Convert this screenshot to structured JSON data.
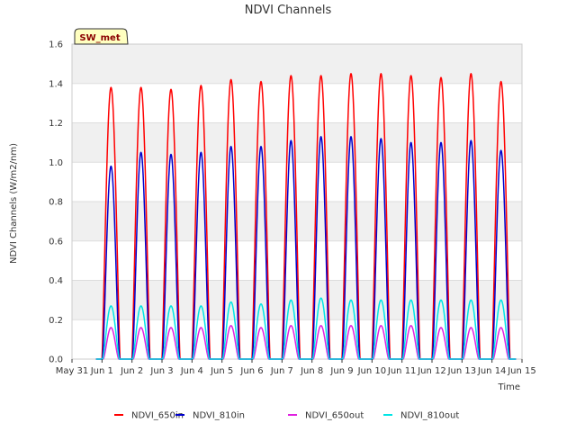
{
  "chart_data": {
    "type": "line",
    "title": "NDVI Channels",
    "xlabel": "Time",
    "ylabel": "NDVI Channels (W/m2/nm)",
    "badge": "SW_met",
    "ylim": [
      0.0,
      1.6
    ],
    "yticks": [
      "0.0",
      "0.2",
      "0.4",
      "0.6",
      "0.8",
      "1.0",
      "1.2",
      "1.4",
      "1.6"
    ],
    "xlim_days": [
      0,
      15
    ],
    "xticks": [
      "May 31",
      "Jun 1",
      "Jun 2",
      "Jun 3",
      "Jun 4",
      "Jun 5",
      "Jun 6",
      "Jun 7",
      "Jun 8",
      "Jun 9",
      "Jun 10",
      "Jun 11",
      "Jun 12",
      "Jun 13",
      "Jun 14",
      "Jun 15"
    ],
    "daily_peak_day_offset": [
      1.3,
      2.3,
      3.3,
      4.3,
      5.3,
      6.3,
      7.3,
      8.3,
      9.3,
      10.3,
      11.3,
      12.3,
      13.3,
      14.3
    ],
    "series": [
      {
        "name": "NDVI_650in",
        "color": "#ff0000",
        "daily_peaks": [
          1.38,
          1.38,
          1.37,
          1.39,
          1.42,
          1.41,
          1.44,
          1.44,
          1.45,
          1.45,
          1.44,
          1.43,
          1.45,
          1.41
        ]
      },
      {
        "name": "NDVI_810in",
        "color": "#0000cc",
        "daily_peaks": [
          0.98,
          1.05,
          1.04,
          1.05,
          1.08,
          1.08,
          1.11,
          1.13,
          1.13,
          1.12,
          1.1,
          1.1,
          1.11,
          1.06
        ]
      },
      {
        "name": "NDVI_650out",
        "color": "#e020e0",
        "daily_peaks": [
          0.16,
          0.16,
          0.16,
          0.16,
          0.17,
          0.16,
          0.17,
          0.17,
          0.17,
          0.17,
          0.17,
          0.16,
          0.16,
          0.16
        ]
      },
      {
        "name": "NDVI_810out",
        "color": "#00e5e5",
        "daily_peaks": [
          0.27,
          0.27,
          0.27,
          0.27,
          0.29,
          0.28,
          0.3,
          0.31,
          0.3,
          0.3,
          0.3,
          0.3,
          0.3,
          0.3
        ]
      }
    ],
    "legend_position": "bottom",
    "grid": true
  }
}
